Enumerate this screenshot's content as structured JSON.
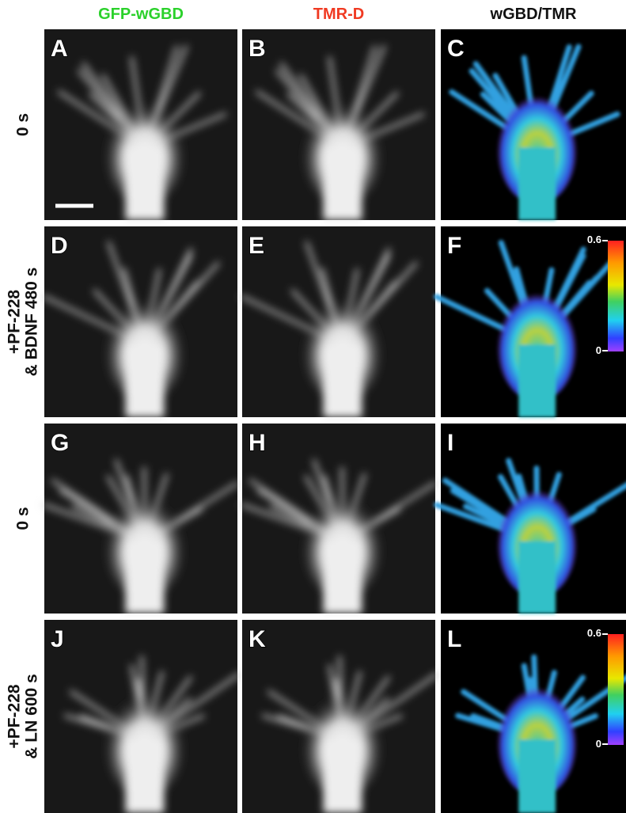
{
  "columns": [
    {
      "title": "GFP-wGBD"
    },
    {
      "title": "TMR-D"
    },
    {
      "title": "wGBD/TMR"
    }
  ],
  "rows": [
    {
      "label": [
        "0 s"
      ],
      "panels": [
        "A",
        "B",
        "C"
      ]
    },
    {
      "label": [
        "+PF-228",
        "& BDNF 480 s"
      ],
      "panels": [
        "D",
        "E",
        "F"
      ],
      "colorbar": {
        "max": "0.6",
        "min": "0"
      }
    },
    {
      "label": [
        "0 s"
      ],
      "panels": [
        "G",
        "H",
        "I"
      ]
    },
    {
      "label": [
        "+PF-228",
        "& LN 600 s"
      ],
      "panels": [
        "J",
        "K",
        "L"
      ],
      "colorbar": {
        "max": "0.6",
        "min": "0"
      }
    }
  ]
}
